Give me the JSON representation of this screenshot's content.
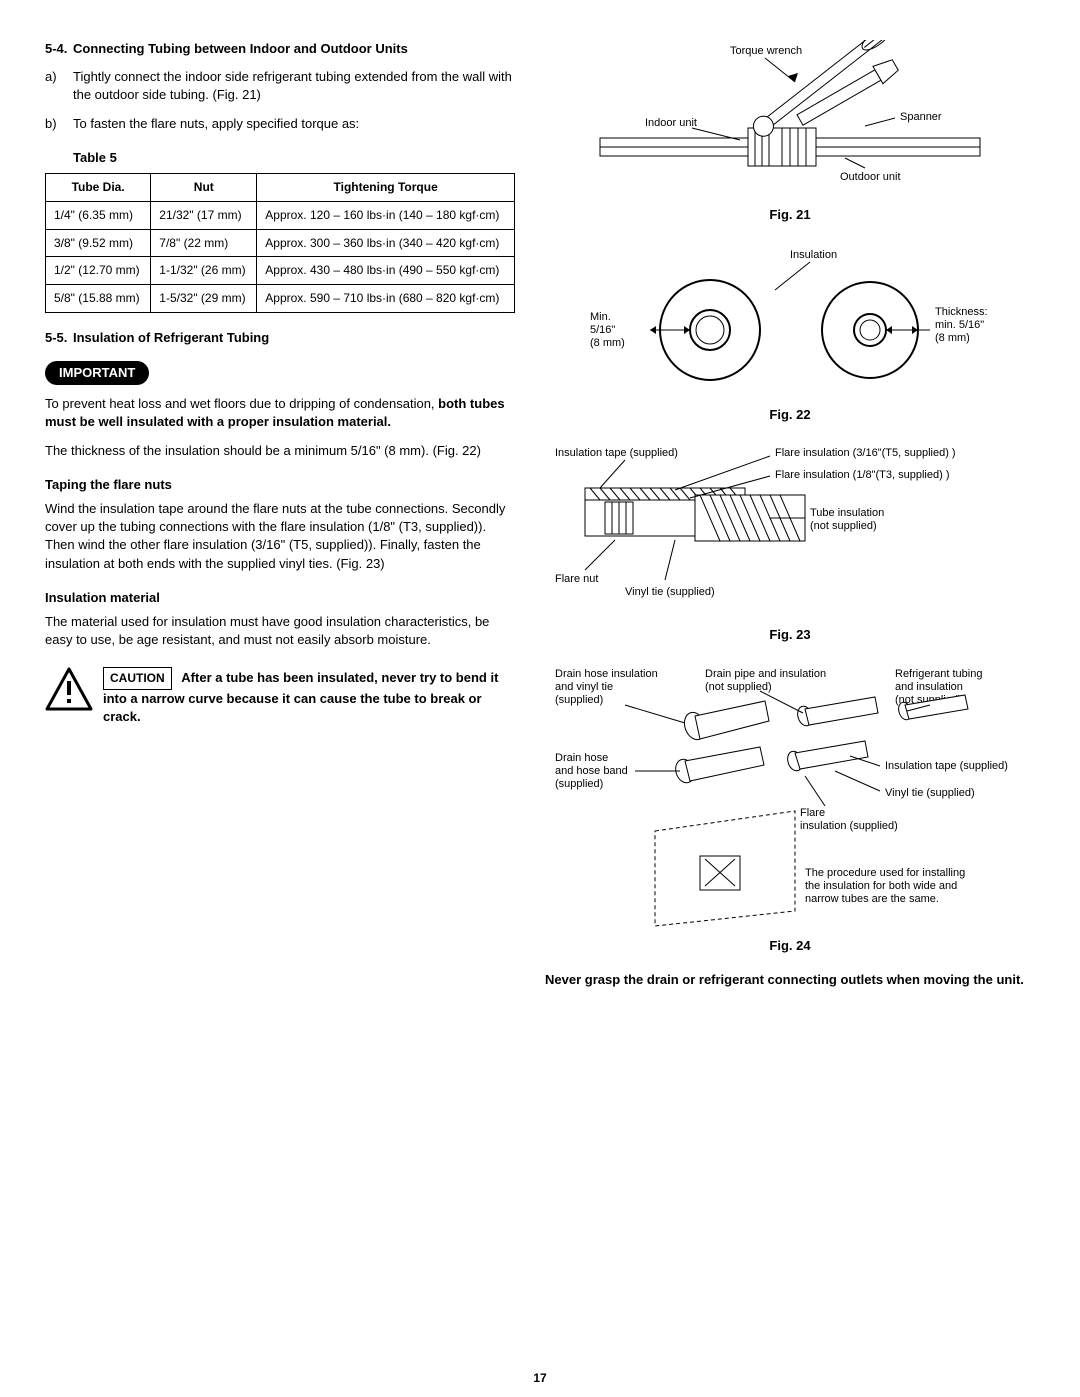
{
  "section54": {
    "title_prefix": "5-4.",
    "title": "Connecting Tubing between Indoor and Outdoor Units",
    "item_a_marker": "a)",
    "item_a": "Tightly connect the indoor side refrigerant tubing extended from the wall with the outdoor side tubing. (Fig. 21)",
    "item_b_marker": "b)",
    "item_b": "To fasten the flare nuts, apply specified torque as:",
    "table_label": "Table 5"
  },
  "torque_table": {
    "headers": [
      "Tube Dia.",
      "Nut",
      "Tightening Torque"
    ],
    "rows": [
      [
        "1/4\" (6.35 mm)",
        "21/32\" (17 mm)",
        "Approx. 120 – 160 lbs·in (140 – 180 kgf·cm)"
      ],
      [
        "3/8\" (9.52 mm)",
        "7/8\" (22 mm)",
        "Approx. 300 – 360 lbs·in (340 – 420 kgf·cm)"
      ],
      [
        "1/2\" (12.70 mm)",
        "1-1/32\" (26 mm)",
        "Approx. 430 – 480 lbs·in (490 – 550 kgf·cm)"
      ],
      [
        "5/8\" (15.88 mm)",
        "1-5/32\" (29 mm)",
        "Approx. 590 – 710 lbs·in (680 – 820 kgf·cm)"
      ]
    ]
  },
  "section55": {
    "title_prefix": "5-5.",
    "title": "Insulation of Refrigerant Tubing",
    "important_label": "IMPORTANT",
    "para1_a": "To prevent heat loss and wet floors due to dripping of condensation, ",
    "para1_b": "both tubes must be well insulated with a proper insulation material.",
    "para2": "The thickness of the insulation should be a minimum 5/16\" (8 mm). (Fig. 22)",
    "taping_title": "Taping the flare nuts",
    "taping_text": "Wind the insulation tape around the flare nuts at the tube connections. Secondly cover up the tubing connections with the flare insulation (1/8\" (T3, supplied)). Then wind the other flare insulation (3/16\" (T5, supplied)). Finally, fasten the insulation at both ends with the supplied vinyl ties. (Fig. 23)",
    "mat_title": "Insulation material",
    "mat_text": "The material used for insulation must have good insulation characteristics, be easy to use, be age resistant, and must not easily absorb moisture."
  },
  "caution": {
    "label": "CAUTION",
    "text": "After a tube has been insulated, never try to bend it into a narrow curve because it can cause the tube to break or crack."
  },
  "fig21": {
    "caption": "Fig. 21",
    "torque_wrench": "Torque wrench",
    "indoor_unit": "Indoor unit",
    "spanner": "Spanner",
    "outdoor_unit": "Outdoor unit"
  },
  "fig22": {
    "caption": "Fig. 22",
    "insulation": "Insulation",
    "min": "Min. 5/16\" (8 mm)",
    "thickness": "Thickness: min. 5/16\" (8 mm)"
  },
  "fig23": {
    "caption": "Fig. 23",
    "insulation_tape": "Insulation tape (supplied)",
    "flare_t5": "Flare insulation (3/16\"(T5, supplied) )",
    "flare_t3": "Flare insulation (1/8\"(T3, supplied) )",
    "tube_insulation": "Tube insulation (not supplied)",
    "flare_nut": "Flare nut",
    "vinyl_tie": "Vinyl tie (supplied)"
  },
  "fig24": {
    "caption": "Fig. 24",
    "drain_hose_ins": "Drain hose insulation and vinyl tie (supplied)",
    "drain_pipe": "Drain pipe and insulation (not supplied)",
    "refrig_tubing": "Refrigerant tubing and insulation (not supplied)",
    "drain_hose": "Drain hose and hose band (supplied)",
    "insulation_tape": "Insulation tape (supplied)",
    "vinyl_tie": "Vinyl tie (supplied)",
    "flare_ins": "Flare insulation (supplied)",
    "note": "The procedure used for installing the insulation for both wide and narrow tubes are the same.",
    "never": "Never grasp the drain or refrigerant connecting outlets when moving the unit."
  },
  "page_number": "17"
}
